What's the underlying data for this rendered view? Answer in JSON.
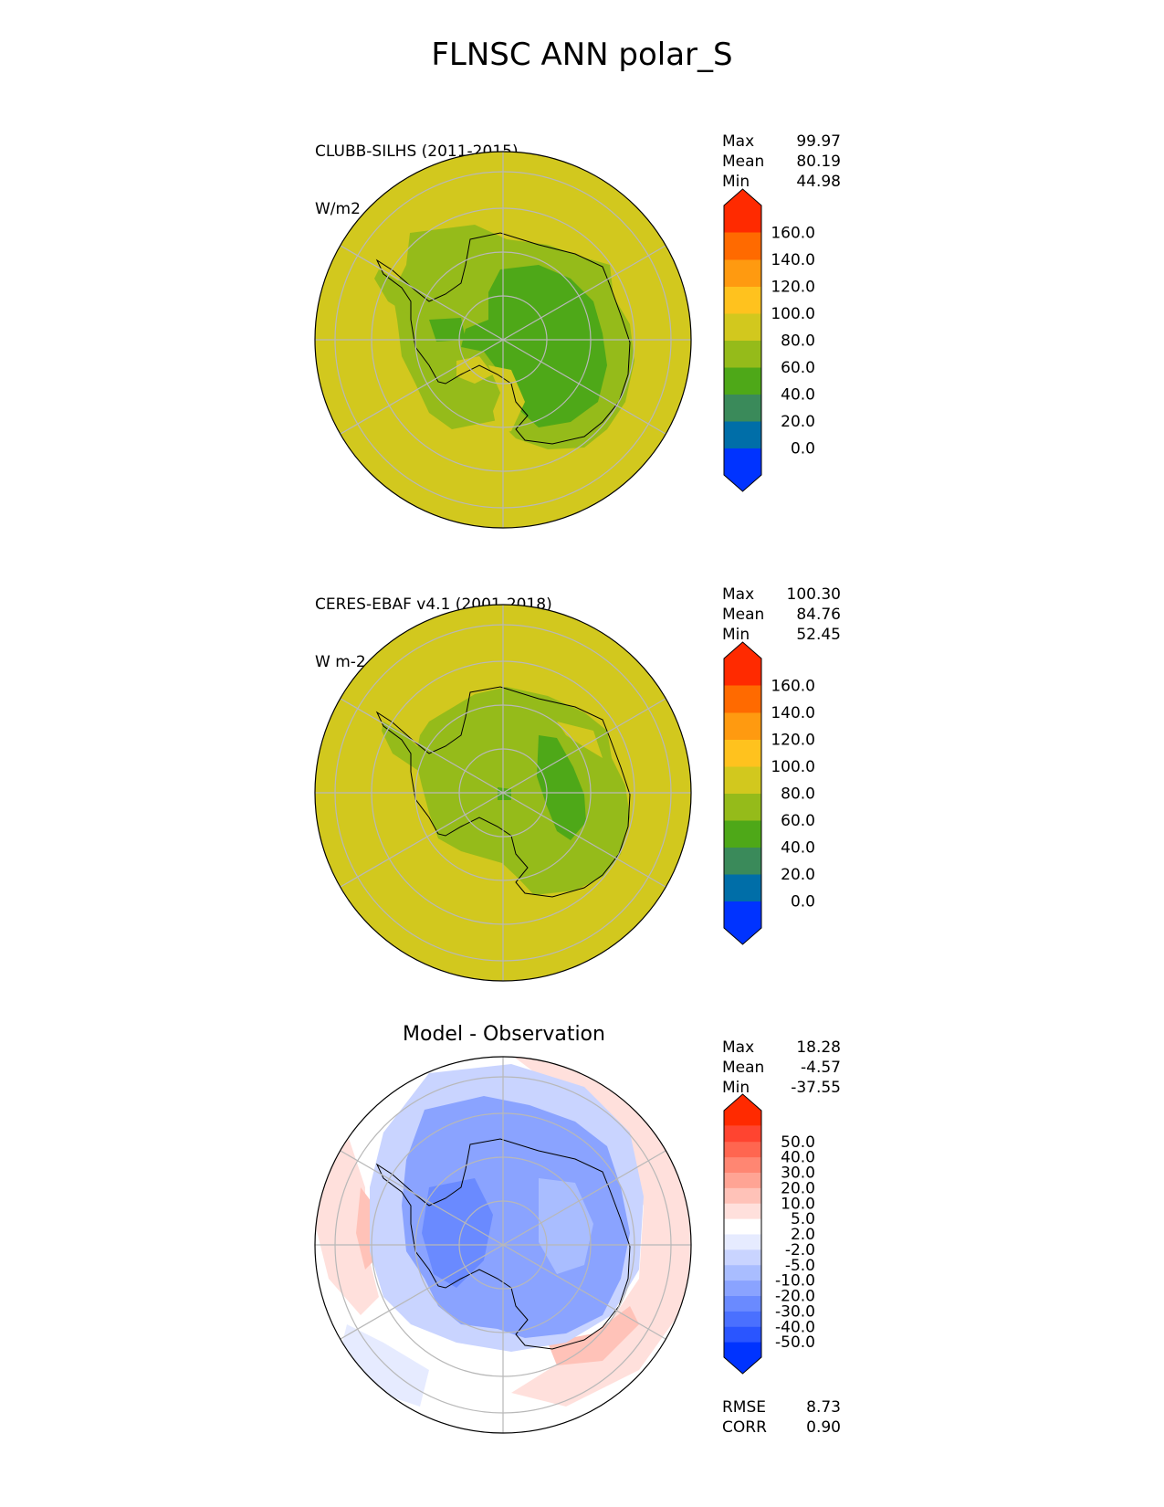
{
  "figure": {
    "title": "FLNSC ANN polar_S"
  },
  "panels": [
    {
      "id": "test",
      "label_line1": "CLUBB-SILHS (2011-2015)",
      "label_line2": "W/m2",
      "stats": [
        {
          "name": "Max",
          "value": "99.97"
        },
        {
          "name": "Mean",
          "value": "80.19"
        },
        {
          "name": "Min",
          "value": "44.98"
        }
      ],
      "colorbar": {
        "colors": [
          "#0033ff",
          "#006ea8",
          "#3a8a5a",
          "#4ea818",
          "#95bb1a",
          "#d2c81e",
          "#ffc21e",
          "#ff9a10",
          "#ff6a00",
          "#ff2a00"
        ],
        "ticks": [
          "0.0",
          "20.0",
          "40.0",
          "60.0",
          "80.0",
          "100.0",
          "120.0",
          "140.0",
          "160.0"
        ]
      }
    },
    {
      "id": "reference",
      "label_line1": "CERES-EBAF v4.1 (2001-2018)",
      "label_line2": "W m-2",
      "stats": [
        {
          "name": "Max",
          "value": "100.30"
        },
        {
          "name": "Mean",
          "value": "84.76"
        },
        {
          "name": "Min",
          "value": "52.45"
        }
      ],
      "colorbar": {
        "colors": [
          "#0033ff",
          "#006ea8",
          "#3a8a5a",
          "#4ea818",
          "#95bb1a",
          "#d2c81e",
          "#ffc21e",
          "#ff9a10",
          "#ff6a00",
          "#ff2a00"
        ],
        "ticks": [
          "0.0",
          "20.0",
          "40.0",
          "60.0",
          "80.0",
          "100.0",
          "120.0",
          "140.0",
          "160.0"
        ]
      }
    },
    {
      "id": "difference",
      "title": "Model - Observation",
      "stats": [
        {
          "name": "Max",
          "value": "18.28"
        },
        {
          "name": "Mean",
          "value": "-4.57"
        },
        {
          "name": "Min",
          "value": "-37.55"
        }
      ],
      "metrics": [
        {
          "name": "RMSE",
          "value": "8.73"
        },
        {
          "name": "CORR",
          "value": "0.90"
        }
      ],
      "colorbar": {
        "colors": [
          "#0033ff",
          "#2a55ff",
          "#4a70ff",
          "#6a8aff",
          "#8aa3ff",
          "#a9bdff",
          "#c9d4ff",
          "#e6ebff",
          "#ffffff",
          "#ffe0dc",
          "#ffc2b8",
          "#ffa494",
          "#ff8672",
          "#ff6650",
          "#ff4430",
          "#ff2a00"
        ],
        "ticks": [
          "-50.0",
          "-40.0",
          "-30.0",
          "-20.0",
          "-10.0",
          "-5.0",
          "-2.0",
          "2.0",
          "5.0",
          "10.0",
          "20.0",
          "30.0",
          "40.0",
          "50.0"
        ]
      }
    }
  ]
}
